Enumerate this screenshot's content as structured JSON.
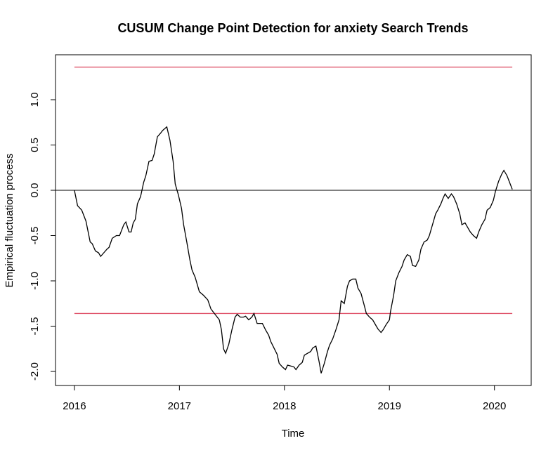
{
  "chart_data": {
    "type": "line",
    "title": "CUSUM Change Point Detection for anxiety Search Trends",
    "xlabel": "Time",
    "ylabel": "Empirical fluctuation process",
    "x": [
      2016,
      2016.03,
      2016.07,
      2016.11,
      2016.15,
      2016.17,
      2016.2,
      2016.23,
      2016.25,
      2016.28,
      2016.31,
      2016.33,
      2016.36,
      2016.4,
      2016.43,
      2016.47,
      2016.49,
      2016.52,
      2016.54,
      2016.56,
      2016.58,
      2016.6,
      2016.63,
      2016.66,
      2016.68,
      2016.71,
      2016.74,
      2016.76,
      2016.79,
      2016.82,
      2016.84,
      2016.88,
      2016.91,
      2016.94,
      2016.96,
      2016.99,
      2017.02,
      2017.04,
      2017.07,
      2017.1,
      2017.12,
      2017.15,
      2017.19,
      2017.23,
      2017.27,
      2017.3,
      2017.34,
      2017.38,
      2017.4,
      2017.42,
      2017.44,
      2017.47,
      2017.5,
      2017.53,
      2017.55,
      2017.58,
      2017.61,
      2017.63,
      2017.66,
      2017.69,
      2017.71,
      2017.74,
      2017.77,
      2017.79,
      2017.82,
      2017.85,
      2017.87,
      2017.9,
      2017.93,
      2017.95,
      2017.98,
      2018.01,
      2018.03,
      2018.06,
      2018.09,
      2018.11,
      2018.14,
      2018.17,
      2018.19,
      2018.22,
      2018.25,
      2018.27,
      2018.3,
      2018.33,
      2018.35,
      2018.38,
      2018.41,
      2018.43,
      2018.46,
      2018.49,
      2018.52,
      2018.54,
      2018.57,
      2018.6,
      2018.62,
      2018.65,
      2018.68,
      2018.7,
      2018.73,
      2018.76,
      2018.78,
      2018.81,
      2018.84,
      2018.86,
      2018.89,
      2018.92,
      2018.94,
      2018.97,
      2019,
      2019.01,
      2019.04,
      2019.06,
      2019.09,
      2019.12,
      2019.14,
      2019.17,
      2019.2,
      2019.22,
      2019.25,
      2019.28,
      2019.3,
      2019.33,
      2019.36,
      2019.38,
      2019.41,
      2019.44,
      2019.46,
      2019.49,
      2019.51,
      2019.53,
      2019.56,
      2019.59,
      2019.61,
      2019.64,
      2019.67,
      2019.69,
      2019.72,
      2019.75,
      2019.77,
      2019.8,
      2019.83,
      2019.85,
      2019.88,
      2019.91,
      2019.93,
      2019.96,
      2019.99,
      2020.01,
      2020.04,
      2020.07,
      2020.09,
      2020.12,
      2020.15,
      2020.17
    ],
    "series": [
      {
        "color": "#000000",
        "values": [
          0,
          -0.17,
          -0.22,
          -0.34,
          -0.57,
          -0.59,
          -0.67,
          -0.69,
          -0.73,
          -0.69,
          -0.65,
          -0.63,
          -0.53,
          -0.5,
          -0.5,
          -0.38,
          -0.35,
          -0.46,
          -0.46,
          -0.36,
          -0.32,
          -0.15,
          -0.07,
          0.09,
          0.16,
          0.32,
          0.33,
          0.4,
          0.59,
          0.63,
          0.66,
          0.7,
          0.55,
          0.32,
          0.07,
          -0.05,
          -0.2,
          -0.38,
          -0.57,
          -0.77,
          -0.88,
          -0.96,
          -1.12,
          -1.16,
          -1.21,
          -1.31,
          -1.37,
          -1.43,
          -1.54,
          -1.75,
          -1.8,
          -1.7,
          -1.54,
          -1.4,
          -1.37,
          -1.4,
          -1.4,
          -1.39,
          -1.43,
          -1.4,
          -1.36,
          -1.47,
          -1.47,
          -1.47,
          -1.54,
          -1.6,
          -1.67,
          -1.74,
          -1.81,
          -1.91,
          -1.95,
          -1.98,
          -1.93,
          -1.94,
          -1.95,
          -1.98,
          -1.93,
          -1.9,
          -1.82,
          -1.8,
          -1.78,
          -1.74,
          -1.72,
          -1.89,
          -2.02,
          -1.91,
          -1.78,
          -1.71,
          -1.64,
          -1.54,
          -1.43,
          -1.22,
          -1.25,
          -1.06,
          -1,
          -0.98,
          -0.98,
          -1.08,
          -1.14,
          -1.27,
          -1.36,
          -1.4,
          -1.43,
          -1.47,
          -1.53,
          -1.57,
          -1.54,
          -1.48,
          -1.43,
          -1.34,
          -1.16,
          -1,
          -0.91,
          -0.84,
          -0.77,
          -0.71,
          -0.73,
          -0.83,
          -0.84,
          -0.77,
          -0.65,
          -0.57,
          -0.55,
          -0.5,
          -0.38,
          -0.26,
          -0.22,
          -0.15,
          -0.09,
          -0.04,
          -0.09,
          -0.04,
          -0.07,
          -0.15,
          -0.26,
          -0.38,
          -0.36,
          -0.42,
          -0.46,
          -0.5,
          -0.53,
          -0.46,
          -0.38,
          -0.32,
          -0.22,
          -0.19,
          -0.11,
          -0.01,
          0.1,
          0.18,
          0.22,
          0.16,
          0.07,
          0.01
        ]
      }
    ],
    "boundaries": {
      "color": "#df536b",
      "values": [
        1.36,
        -1.36
      ]
    },
    "hlines": {
      "color": "#000000",
      "values": [
        0
      ]
    },
    "xlim": [
      2015.82,
      2020.35
    ],
    "ylim": [
      -2.155,
      1.496
    ],
    "xticks": [
      2016,
      2017,
      2018,
      2019,
      2020
    ],
    "yticks": [
      {
        "value": -2,
        "label": "-2.0"
      },
      {
        "value": -1.5,
        "label": "-1.5"
      },
      {
        "value": -1,
        "label": "-1.0"
      },
      {
        "value": -0.5,
        "label": "-0.5"
      },
      {
        "value": 0,
        "label": "0.0"
      },
      {
        "value": 0.5,
        "label": "0.5"
      },
      {
        "value": 1,
        "label": "1.0"
      }
    ]
  }
}
